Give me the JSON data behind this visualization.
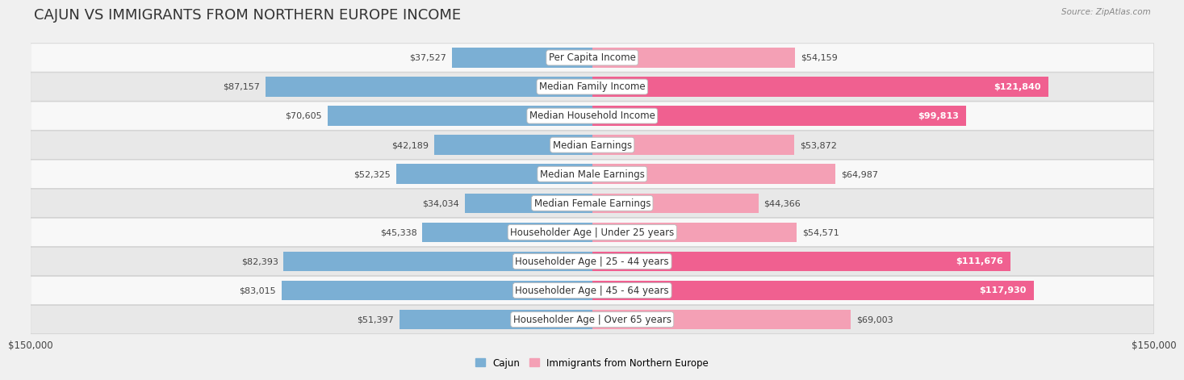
{
  "title": "CAJUN VS IMMIGRANTS FROM NORTHERN EUROPE INCOME",
  "source": "Source: ZipAtlas.com",
  "categories": [
    "Per Capita Income",
    "Median Family Income",
    "Median Household Income",
    "Median Earnings",
    "Median Male Earnings",
    "Median Female Earnings",
    "Householder Age | Under 25 years",
    "Householder Age | 25 - 44 years",
    "Householder Age | 45 - 64 years",
    "Householder Age | Over 65 years"
  ],
  "cajun_values": [
    37527,
    87157,
    70605,
    42189,
    52325,
    34034,
    45338,
    82393,
    83015,
    51397
  ],
  "immigrant_values": [
    54159,
    121840,
    99813,
    53872,
    64987,
    44366,
    54571,
    111676,
    117930,
    69003
  ],
  "cajun_color": "#7bafd4",
  "immigrant_color": "#f4a0b5",
  "immigrant_large_color": "#f06090",
  "max_val": 150000,
  "legend_cajun": "Cajun",
  "legend_immigrant": "Immigrants from Northern Europe",
  "xlabel_left": "$150,000",
  "xlabel_right": "$150,000",
  "background_color": "#f0f0f0",
  "row_bg_odd": "#f8f8f8",
  "row_bg_even": "#e8e8e8",
  "title_fontsize": 13,
  "label_fontsize": 8.5,
  "value_fontsize": 8,
  "white_text_threshold": 95000,
  "large_immig_threshold": 95000
}
